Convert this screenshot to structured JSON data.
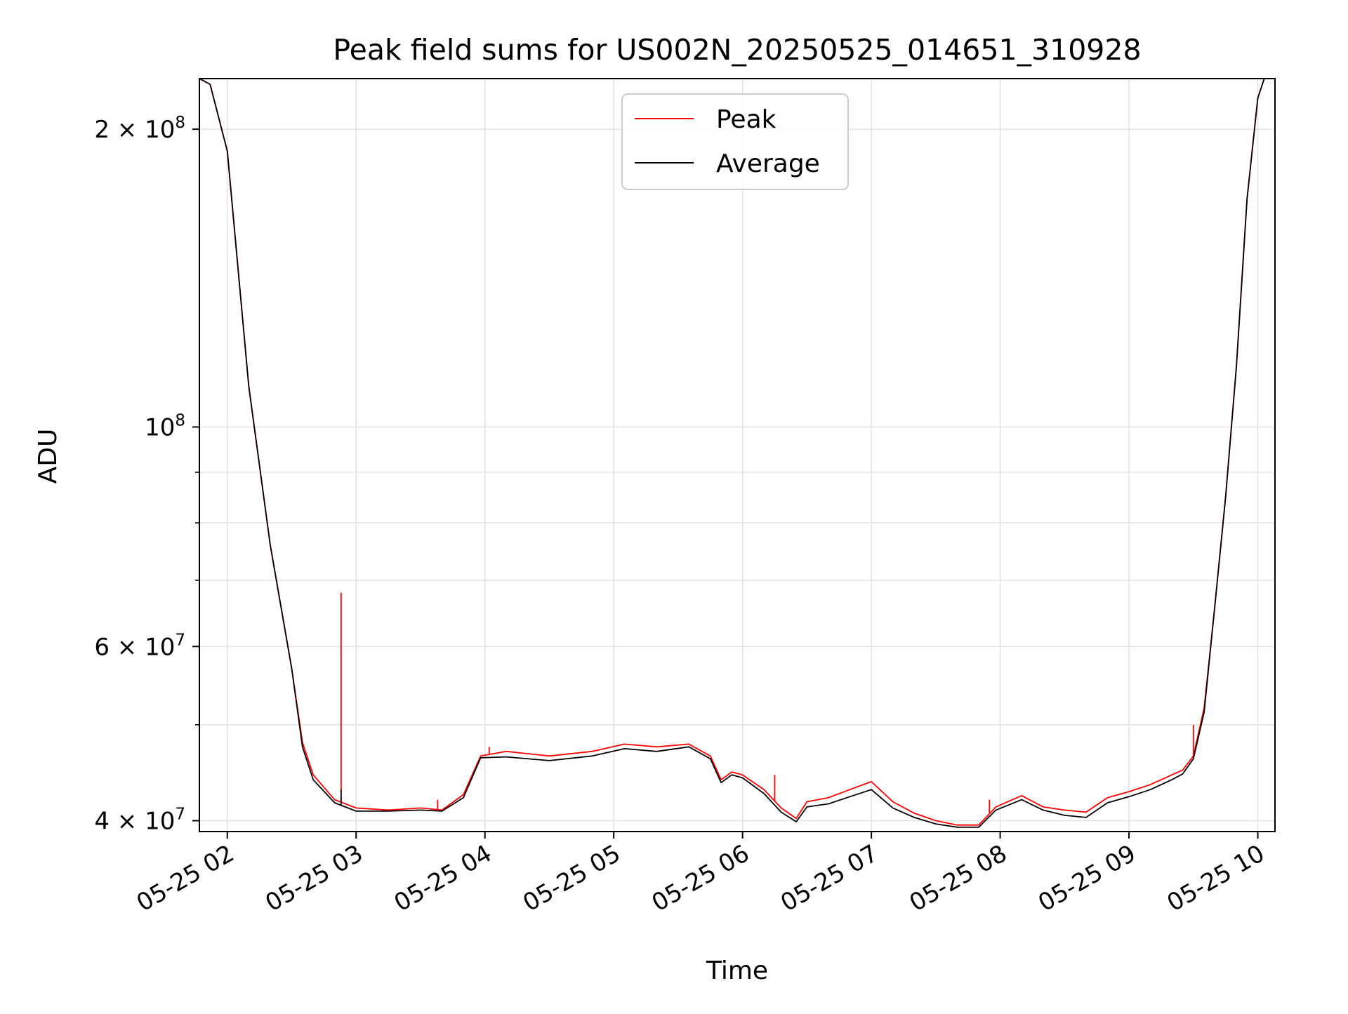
{
  "chart_data": {
    "type": "line",
    "title": "Peak field sums for US002N_20250525_014651_310928",
    "xlabel": "Time",
    "ylabel": "ADU",
    "yscale": "log",
    "grid": true,
    "legend_position": "top-center",
    "xlim": [
      "05-25 01:47",
      "05-25 10:08"
    ],
    "ylim": [
      39000000,
      225000000
    ],
    "x_ticks": [
      "05-25 02:00",
      "05-25 03:00",
      "05-25 04:00",
      "05-25 05:00",
      "05-25 06:00",
      "05-25 07:00",
      "05-25 08:00",
      "05-25 09:00",
      "05-25 10:00"
    ],
    "x_tick_labels": [
      "05-25 02",
      "05-25 03",
      "05-25 04",
      "05-25 05",
      "05-25 06",
      "05-25 07",
      "05-25 08",
      "05-25 09",
      "05-25 10"
    ],
    "y_major_ticks": [
      {
        "value": 40000000,
        "base": "4 × 10",
        "exp": "7"
      },
      {
        "value": 60000000,
        "base": "6 × 10",
        "exp": "7"
      },
      {
        "value": 100000000,
        "base": "10",
        "exp": "8"
      },
      {
        "value": 200000000,
        "base": "2 × 10",
        "exp": "8"
      }
    ],
    "y_minor_ticks": [
      50000000,
      70000000,
      80000000,
      90000000
    ],
    "series": [
      {
        "name": "Peak",
        "color": "#ff0000",
        "x": [
          "05-25 01:47",
          "05-25 01:52",
          "05-25 02:00",
          "05-25 02:10",
          "05-25 02:20",
          "05-25 02:30",
          "05-25 02:35",
          "05-25 02:40",
          "05-25 02:50",
          "05-25 03:00",
          "05-25 03:15",
          "05-25 03:30",
          "05-25 03:40",
          "05-25 03:50",
          "05-25 03:58",
          "05-25 04:10",
          "05-25 04:30",
          "05-25 04:50",
          "05-25 05:05",
          "05-25 05:20",
          "05-25 05:35",
          "05-25 05:45",
          "05-25 05:50",
          "05-25 05:55",
          "05-25 06:00",
          "05-25 06:10",
          "05-25 06:18",
          "05-25 06:25",
          "05-25 06:30",
          "05-25 06:40",
          "05-25 06:50",
          "05-25 07:00",
          "05-25 07:10",
          "05-25 07:20",
          "05-25 07:30",
          "05-25 07:40",
          "05-25 07:50",
          "05-25 07:58",
          "05-25 08:10",
          "05-25 08:20",
          "05-25 08:30",
          "05-25 08:40",
          "05-25 08:50",
          "05-25 09:00",
          "05-25 09:10",
          "05-25 09:20",
          "05-25 09:25",
          "05-25 09:30",
          "05-25 09:35",
          "05-25 09:40",
          "05-25 09:45",
          "05-25 09:50",
          "05-25 09:55",
          "05-25 10:00",
          "05-25 10:03",
          "05-25 10:08"
        ],
        "y": [
          225000000,
          222000000,
          190000000,
          110000000,
          76000000,
          57000000,
          48000000,
          44500000,
          42000000,
          41200000,
          41000000,
          41200000,
          41000000,
          42500000,
          46500000,
          47000000,
          46500000,
          47000000,
          47800000,
          47500000,
          47800000,
          46500000,
          44000000,
          44800000,
          44500000,
          43000000,
          41200000,
          40200000,
          41800000,
          42200000,
          43000000,
          43800000,
          41800000,
          40700000,
          40000000,
          39600000,
          39600000,
          41300000,
          42400000,
          41300000,
          41000000,
          40800000,
          42200000,
          42800000,
          43500000,
          44500000,
          45000000,
          46500000,
          52000000,
          66000000,
          85000000,
          115000000,
          170000000,
          215000000,
          225000000,
          225000000
        ]
      },
      {
        "name": "Average",
        "color": "#000000",
        "x": [
          "05-25 01:47",
          "05-25 01:52",
          "05-25 02:00",
          "05-25 02:10",
          "05-25 02:20",
          "05-25 02:30",
          "05-25 02:35",
          "05-25 02:40",
          "05-25 02:50",
          "05-25 03:00",
          "05-25 03:15",
          "05-25 03:30",
          "05-25 03:40",
          "05-25 03:50",
          "05-25 03:58",
          "05-25 04:10",
          "05-25 04:30",
          "05-25 04:50",
          "05-25 05:05",
          "05-25 05:20",
          "05-25 05:35",
          "05-25 05:45",
          "05-25 05:50",
          "05-25 05:55",
          "05-25 06:00",
          "05-25 06:10",
          "05-25 06:18",
          "05-25 06:25",
          "05-25 06:30",
          "05-25 06:40",
          "05-25 06:50",
          "05-25 07:00",
          "05-25 07:10",
          "05-25 07:20",
          "05-25 07:30",
          "05-25 07:40",
          "05-25 07:50",
          "05-25 07:58",
          "05-25 08:10",
          "05-25 08:20",
          "05-25 08:30",
          "05-25 08:40",
          "05-25 08:50",
          "05-25 09:00",
          "05-25 09:10",
          "05-25 09:20",
          "05-25 09:25",
          "05-25 09:30",
          "05-25 09:35",
          "05-25 09:40",
          "05-25 09:45",
          "05-25 09:50",
          "05-25 09:55",
          "05-25 10:00",
          "05-25 10:03",
          "05-25 10:08"
        ],
        "y": [
          225000000,
          222000000,
          190000000,
          110000000,
          76000000,
          57000000,
          47500000,
          44000000,
          41700000,
          40900000,
          40900000,
          41000000,
          40900000,
          42200000,
          46300000,
          46400000,
          46000000,
          46500000,
          47300000,
          47000000,
          47500000,
          46200000,
          43700000,
          44500000,
          44200000,
          42600000,
          40800000,
          39900000,
          41300000,
          41600000,
          42300000,
          43000000,
          41200000,
          40300000,
          39700000,
          39400000,
          39400000,
          41000000,
          42000000,
          41000000,
          40500000,
          40300000,
          41700000,
          42300000,
          43000000,
          44000000,
          44600000,
          46200000,
          51500000,
          66000000,
          85000000,
          115000000,
          170000000,
          215000000,
          225000000,
          225000000
        ]
      }
    ],
    "spikes": [
      {
        "series": "Peak",
        "x": "05-25 02:32",
        "y": 53000000
      },
      {
        "series": "Peak",
        "x": "05-25 02:53",
        "y": 68000000
      },
      {
        "series": "Average",
        "x": "05-25 02:53",
        "y": 43000000
      },
      {
        "series": "Peak",
        "x": "05-25 03:38",
        "y": 42000000
      },
      {
        "series": "Peak",
        "x": "05-25 04:02",
        "y": 47500000
      },
      {
        "series": "Peak",
        "x": "05-25 06:15",
        "y": 44500000
      },
      {
        "series": "Peak",
        "x": "05-25 07:55",
        "y": 42000000
      },
      {
        "series": "Peak",
        "x": "05-25 09:30",
        "y": 50000000
      }
    ]
  }
}
